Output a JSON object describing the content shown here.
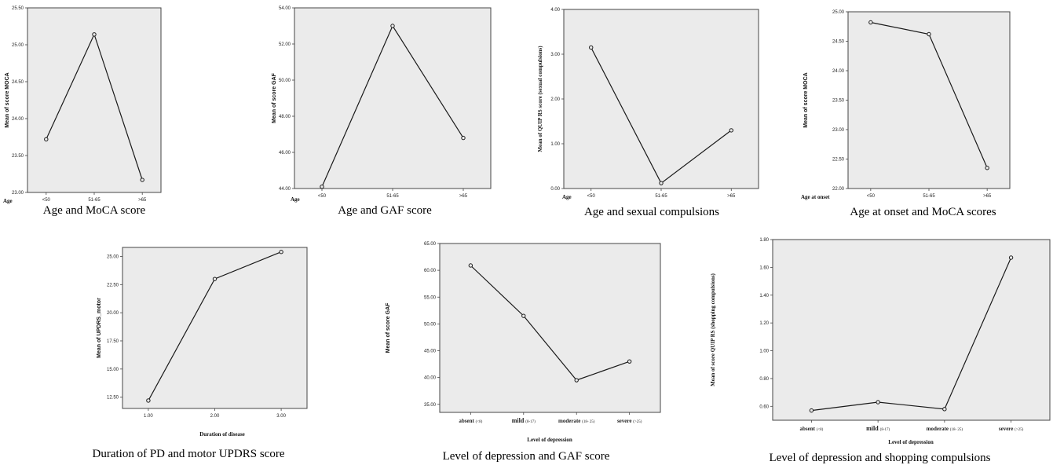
{
  "chart_data": [
    {
      "type": "line",
      "categories": [
        "<50",
        "51-65",
        ">65"
      ],
      "values": [
        23.72,
        25.14,
        23.17
      ],
      "ylabel": "Mean of score MOCA",
      "xlabel": "Age",
      "yticks": [
        "23.00",
        "23.50",
        "24.00",
        "24.50",
        "25.00",
        "25.50"
      ],
      "ylim": [
        23.0,
        25.5
      ],
      "caption": "Age and MoCA score"
    },
    {
      "type": "line",
      "categories": [
        "<50",
        "51-65",
        ">65"
      ],
      "values": [
        44.1,
        53.0,
        46.8
      ],
      "ylabel": "Mean of score  GAF",
      "xlabel": "Age",
      "yticks": [
        "44.00",
        "46.00",
        "48.00",
        "50.00",
        "52.00",
        "54.00"
      ],
      "ylim": [
        44.0,
        54.0
      ],
      "caption": "Age and GAF score"
    },
    {
      "type": "line",
      "categories": [
        "<50",
        "51-65",
        ">65"
      ],
      "values": [
        3.15,
        0.12,
        1.3
      ],
      "ylabel": "Mean of QUIP RS score (sexual compulsions)",
      "xlabel": "Age",
      "yticks": [
        "0.00",
        "1.00",
        "2.00",
        "3.00",
        "4.00"
      ],
      "ylim": [
        0.0,
        4.0
      ],
      "caption": "Age and sexual compulsions"
    },
    {
      "type": "line",
      "categories": [
        "<50",
        "51-65",
        ">65"
      ],
      "values": [
        24.82,
        24.62,
        22.35
      ],
      "ylabel": "Mean of score MOCA",
      "xlabel": "Age at onset",
      "yticks": [
        "22.00",
        "22.50",
        "23.00",
        "23.50",
        "24.00",
        "24.50",
        "25.00"
      ],
      "ylim": [
        22.0,
        25.0
      ],
      "caption": "Age at onset and MoCA scores"
    },
    {
      "type": "line",
      "categories": [
        "1.00",
        "2.00",
        "3.00"
      ],
      "values": [
        12.2,
        23.0,
        25.4
      ],
      "ylabel": "Mean of UPDRS_motor",
      "xlabel": "Duration of disease",
      "yticks": [
        "12.50",
        "15.00",
        "17.50",
        "20.00",
        "22.50",
        "25.00"
      ],
      "ylim": [
        11.5,
        25.8
      ],
      "caption": "Duration of PD and motor UPDRS score"
    },
    {
      "type": "line",
      "categories": [
        [
          "absent",
          "(<8)"
        ],
        [
          "mild",
          "(8-17)"
        ],
        [
          "moderate",
          "(18- 25)"
        ],
        [
          "severe",
          "(>25)"
        ]
      ],
      "values": [
        60.9,
        51.5,
        39.5,
        43.0
      ],
      "ylabel": "Mean of score  GAF",
      "xlabel": "Level of depression",
      "yticks": [
        "35.00",
        "40.00",
        "45.00",
        "50.00",
        "55.00",
        "60.00",
        "65.00"
      ],
      "ylim": [
        33.5,
        65.0
      ],
      "caption": "Level of depression and GAF score"
    },
    {
      "type": "line",
      "categories": [
        [
          "absent",
          "(<8)"
        ],
        [
          "mild",
          "(8-17)"
        ],
        [
          "moderate",
          "(18- 25)"
        ],
        [
          "severe",
          "(>25)"
        ]
      ],
      "values": [
        0.57,
        0.63,
        0.58,
        1.67
      ],
      "ylabel": "Mean of score QUIP RS (shopping compulsions)",
      "xlabel": "Level of depression",
      "yticks": [
        "0.60",
        "0.80",
        "1.00",
        "1.20",
        "1.40",
        "1.60",
        "1.80"
      ],
      "ylim": [
        0.5,
        1.8
      ],
      "caption": "Level of depression and shopping compulsions"
    }
  ]
}
